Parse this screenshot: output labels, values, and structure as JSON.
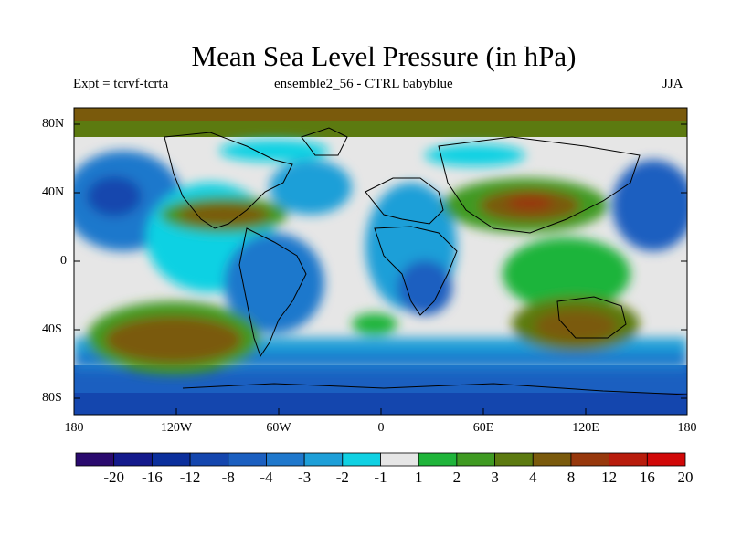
{
  "header": {
    "title": "Mean Sea Level Pressure (in hPa)",
    "expt": "Expt = tcrvf-tcrta",
    "ensemble": "ensemble2_56 - CTRL babyblue",
    "season": "JJA"
  },
  "axes": {
    "lat_ticks": [
      "80N",
      "40N",
      "0",
      "40S",
      "80S"
    ],
    "lon_ticks": [
      "180",
      "120W",
      "60W",
      "0",
      "60E",
      "120E",
      "180"
    ]
  },
  "colorbar": {
    "labels": [
      "-20",
      "-16",
      "-12",
      "-8",
      "-4",
      "-3",
      "-2",
      "-1",
      "1",
      "2",
      "3",
      "4",
      "8",
      "12",
      "16",
      "20"
    ],
    "colors": [
      "#2a0a6e",
      "#141a8c",
      "#0b2f9c",
      "#1446ae",
      "#1b5fc0",
      "#1f78cc",
      "#1e9fd8",
      "#10d1e3",
      "#e6e6e6",
      "#1fb43a",
      "#3f9a22",
      "#5c7a10",
      "#7a5a0c",
      "#97380c",
      "#b81c0c",
      "#d10808"
    ]
  },
  "colors": {
    "land_outline": "#000000",
    "neutral": "#e6e6e6"
  }
}
